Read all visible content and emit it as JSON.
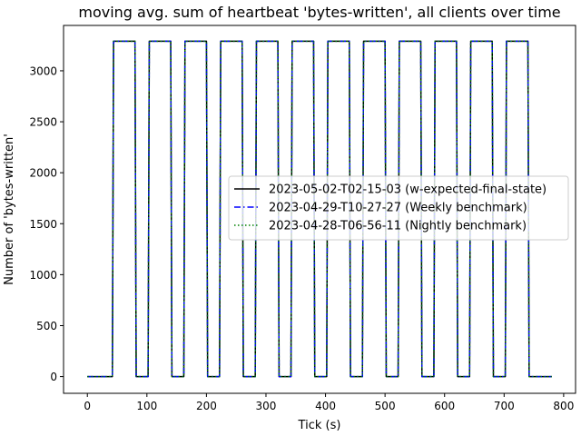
{
  "chart_data": {
    "type": "line",
    "title": "moving avg. sum of heartbeat 'bytes-written', all clients over time",
    "xlabel": "Tick (s)",
    "ylabel": "Number of 'bytes-written'",
    "xlim": [
      -40,
      820
    ],
    "ylim": [
      -164,
      3445
    ],
    "xticks": [
      0,
      100,
      200,
      300,
      400,
      500,
      600,
      700,
      800
    ],
    "yticks": [
      0,
      500,
      1000,
      1500,
      2000,
      2500,
      3000
    ],
    "grid": false,
    "legend_position": "center-right",
    "series": [
      {
        "name": "2023-05-02-T02-15-03 (w-expected-final-state)",
        "color": "#000000",
        "style": "solid",
        "x": [
          0,
          42,
          44,
          80,
          82,
          102,
          104,
          140,
          142,
          162,
          164,
          200,
          202,
          222,
          224,
          260,
          262,
          282,
          284,
          320,
          322,
          342,
          344,
          380,
          382,
          402,
          404,
          440,
          442,
          462,
          464,
          500,
          502,
          522,
          524,
          560,
          562,
          582,
          584,
          620,
          622,
          642,
          644,
          680,
          682,
          702,
          704,
          740,
          742,
          780
        ],
        "y": [
          0,
          0,
          3290,
          3290,
          0,
          0,
          3290,
          3290,
          0,
          0,
          3290,
          3290,
          0,
          0,
          3290,
          3290,
          0,
          0,
          3290,
          3290,
          0,
          0,
          3290,
          3290,
          0,
          0,
          3290,
          3290,
          0,
          0,
          3290,
          3290,
          0,
          0,
          3290,
          3290,
          0,
          0,
          3290,
          3290,
          0,
          0,
          3290,
          3290,
          0,
          0,
          3290,
          3290,
          0,
          0
        ]
      },
      {
        "name": "2023-04-29-T10-27-27 (Weekly benchmark)",
        "color": "#0000ff",
        "style": "dashdot",
        "x": [
          0,
          42,
          44,
          80,
          82,
          102,
          104,
          140,
          142,
          162,
          164,
          200,
          202,
          222,
          224,
          260,
          262,
          282,
          284,
          320,
          322,
          342,
          344,
          380,
          382,
          402,
          404,
          440,
          442,
          462,
          464,
          500,
          502,
          522,
          524,
          560,
          562,
          582,
          584,
          620,
          622,
          642,
          644,
          680,
          682,
          702,
          704,
          740,
          742,
          780
        ],
        "y": [
          0,
          0,
          3290,
          3290,
          0,
          0,
          3290,
          3290,
          0,
          0,
          3290,
          3290,
          0,
          0,
          3290,
          3290,
          0,
          0,
          3290,
          3290,
          0,
          0,
          3290,
          3290,
          0,
          0,
          3290,
          3290,
          0,
          0,
          3290,
          3290,
          0,
          0,
          3290,
          3290,
          0,
          0,
          3290,
          3290,
          0,
          0,
          3290,
          3290,
          0,
          0,
          3290,
          3290,
          0,
          0
        ]
      },
      {
        "name": "2023-04-28-T06-56-11 (Nightly benchmark)",
        "color": "#008000",
        "style": "dotted",
        "x": [
          0,
          42,
          44,
          80,
          82,
          102,
          104,
          140,
          142,
          162,
          164,
          200,
          202,
          222,
          224,
          260,
          262,
          282,
          284,
          320,
          322,
          342,
          344,
          380,
          382,
          402,
          404,
          440,
          442,
          462,
          464,
          500,
          502,
          522,
          524,
          560,
          562,
          582,
          584,
          620,
          622,
          642,
          644,
          680,
          682,
          702,
          704,
          740,
          742,
          780
        ],
        "y": [
          0,
          0,
          3290,
          3290,
          0,
          0,
          3290,
          3290,
          0,
          0,
          3290,
          3290,
          0,
          0,
          3290,
          3290,
          0,
          0,
          3290,
          3290,
          0,
          0,
          3290,
          3290,
          0,
          0,
          3290,
          3290,
          0,
          0,
          3290,
          3290,
          0,
          0,
          3290,
          3290,
          0,
          0,
          3290,
          3290,
          0,
          0,
          3290,
          3290,
          0,
          0,
          3290,
          3290,
          0,
          0
        ]
      }
    ]
  }
}
